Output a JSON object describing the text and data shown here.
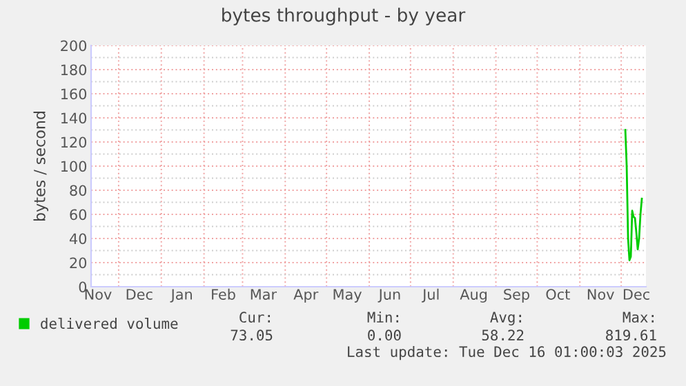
{
  "chart_data": {
    "type": "line",
    "title": "bytes throughput - by year",
    "ylabel": "bytes / second",
    "series": [
      {
        "name": "delivered volume",
        "color": "#00cc00",
        "x": [
          "2025-12-04",
          "2025-12-05",
          "2025-12-06",
          "2025-12-07",
          "2025-12-08",
          "2025-12-09",
          "2025-12-10",
          "2025-12-11",
          "2025-12-12",
          "2025-12-13",
          "2025-12-14",
          "2025-12-15",
          "2025-12-16"
        ],
        "values": [
          130,
          100,
          40,
          22,
          25,
          63,
          58,
          57,
          45,
          31,
          40,
          60,
          73
        ]
      }
    ],
    "xlim": [
      "2024-11-11",
      "2025-12-19"
    ],
    "xticks": [
      {
        "value": "2024-11-16",
        "label": "Nov"
      },
      {
        "value": "2024-12-01",
        "label": null
      },
      {
        "value": "2024-12-16",
        "label": "Dec"
      },
      {
        "value": "2025-01-01",
        "label": null
      },
      {
        "value": "2025-01-16",
        "label": "Jan"
      },
      {
        "value": "2025-02-01",
        "label": null
      },
      {
        "value": "2025-02-15",
        "label": "Feb"
      },
      {
        "value": "2025-03-01",
        "label": null
      },
      {
        "value": "2025-03-16",
        "label": "Mar"
      },
      {
        "value": "2025-04-01",
        "label": null
      },
      {
        "value": "2025-04-16",
        "label": "Apr"
      },
      {
        "value": "2025-05-01",
        "label": null
      },
      {
        "value": "2025-05-16",
        "label": "May"
      },
      {
        "value": "2025-06-01",
        "label": null
      },
      {
        "value": "2025-06-16",
        "label": "Jun"
      },
      {
        "value": "2025-07-01",
        "label": null
      },
      {
        "value": "2025-07-16",
        "label": "Jul"
      },
      {
        "value": "2025-08-01",
        "label": null
      },
      {
        "value": "2025-08-16",
        "label": "Aug"
      },
      {
        "value": "2025-09-01",
        "label": null
      },
      {
        "value": "2025-09-16",
        "label": "Sep"
      },
      {
        "value": "2025-10-01",
        "label": null
      },
      {
        "value": "2025-10-16",
        "label": "Oct"
      },
      {
        "value": "2025-11-01",
        "label": null
      },
      {
        "value": "2025-11-16",
        "label": "Nov"
      },
      {
        "value": "2025-12-01",
        "label": null
      },
      {
        "value": "2025-12-12",
        "label": "Dec"
      }
    ],
    "ylim": [
      0,
      200
    ],
    "yticks": [
      0,
      {
        "value": 10,
        "label": null
      },
      20,
      {
        "value": 30,
        "label": null
      },
      40,
      {
        "value": 50,
        "label": null
      },
      60,
      {
        "value": 70,
        "label": null
      },
      80,
      {
        "value": 90,
        "label": null
      },
      100,
      {
        "value": 110,
        "label": null
      },
      120,
      {
        "value": 130,
        "label": null
      },
      140,
      {
        "value": 150,
        "label": null
      },
      160,
      {
        "value": 170,
        "label": null
      },
      180,
      {
        "value": 190,
        "label": null
      },
      200
    ],
    "grid": true,
    "legend": "bottom",
    "marker": "none",
    "line_style": "solid",
    "annotations": [
      "Cur:",
      "Min:",
      "Avg:",
      "Max:",
      "73.05",
      "0.00",
      "58.22",
      "819.61",
      "Last update: Tue Dec 16 01:00:03 2025"
    ]
  }
}
